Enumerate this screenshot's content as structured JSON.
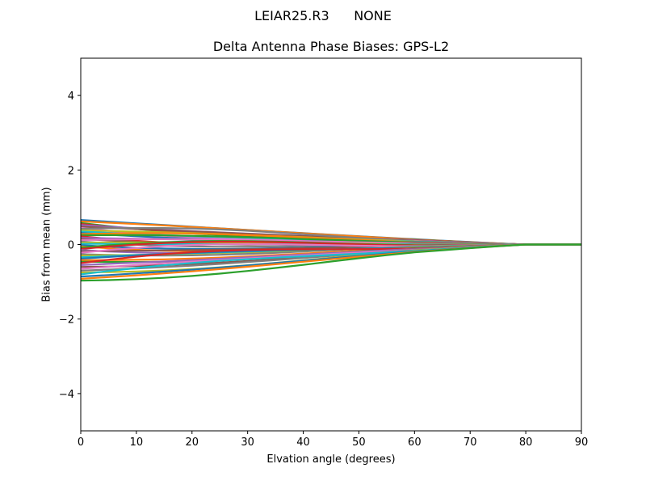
{
  "header": {
    "suptitle": "LEIAR25.R3      NONE"
  },
  "chart_data": {
    "type": "line",
    "title": "Delta Antenna Phase Biases: GPS-L2",
    "suptitle": "LEIAR25.R3      NONE",
    "xlabel": "Elvation angle (degrees)",
    "ylabel": "Bias from mean (mm)",
    "xlim": [
      0,
      90
    ],
    "ylim": [
      -5,
      5
    ],
    "xticks": [
      0,
      10,
      20,
      30,
      40,
      50,
      60,
      70,
      80,
      90
    ],
    "yticks": [
      -4,
      -2,
      0,
      2,
      4
    ],
    "grid": false,
    "legend": null,
    "x": [
      0,
      5,
      10,
      15,
      20,
      25,
      30,
      35,
      40,
      45,
      50,
      55,
      60,
      65,
      70,
      75,
      80,
      85,
      90
    ],
    "start_values": [
      0.66,
      0.62,
      0.58,
      0.55,
      0.52,
      0.48,
      0.45,
      0.42,
      0.38,
      0.35,
      0.31,
      0.28,
      0.25,
      0.22,
      0.18,
      0.15,
      0.12,
      0.08,
      0.05,
      0.02,
      -0.02,
      -0.05,
      -0.08,
      -0.12,
      -0.15,
      -0.18,
      -0.22,
      -0.26,
      -0.3,
      -0.34,
      -0.38,
      -0.42,
      -0.46,
      -0.5,
      -0.55,
      -0.6,
      -0.65,
      -0.7,
      -0.75,
      -0.8,
      -0.86,
      -0.92,
      -0.97
    ],
    "note": "Many series (one per azimuth); each converges toward 0 at 80-90 deg. Values at 0 deg span approx -0.97 to +0.66 mm.",
    "colors": [
      "#1f77b4",
      "#ff7f0e",
      "#2ca02c",
      "#d62728",
      "#9467bd",
      "#8c564b",
      "#e377c2",
      "#7f7f7f",
      "#bcbd22",
      "#17becf"
    ]
  }
}
